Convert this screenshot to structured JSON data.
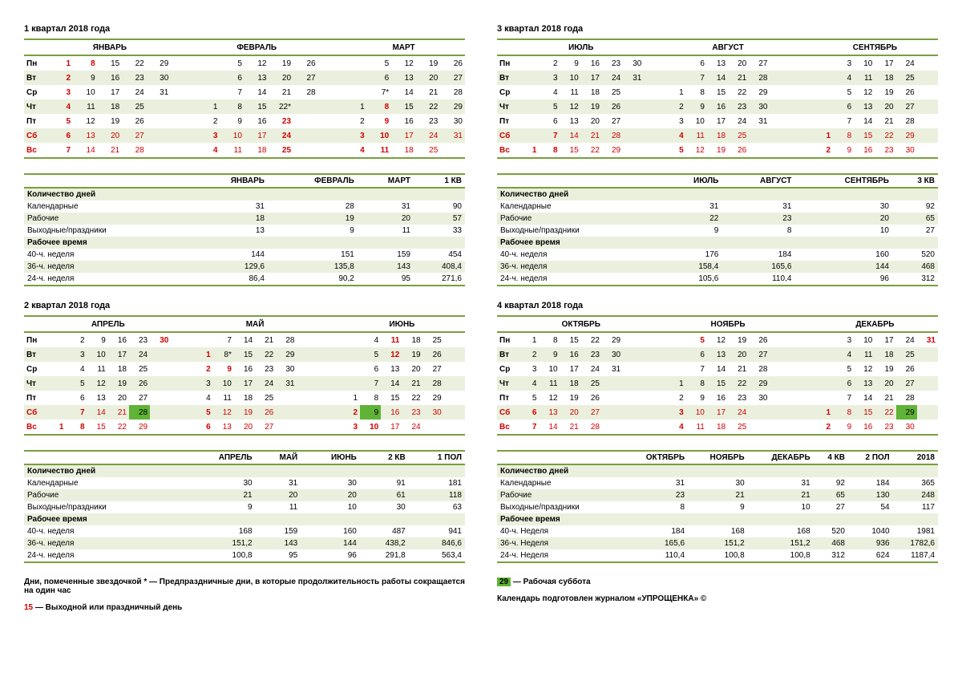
{
  "dows": [
    "Пн",
    "Вт",
    "Ср",
    "Чт",
    "Пт",
    "Сб",
    "Вс"
  ],
  "quarters": [
    {
      "title": "1 квартал 2018 года",
      "months": [
        {
          "name": "ЯНВАРЬ",
          "weeks": 5,
          "grid": [
            [
              "1r",
              "8r",
              "15",
              "22",
              "29"
            ],
            [
              "2r",
              "9",
              "16",
              "23",
              "30"
            ],
            [
              "3r",
              "10",
              "17",
              "24",
              "31"
            ],
            [
              "4r",
              "11",
              "18",
              "25",
              ""
            ],
            [
              "5r",
              "12",
              "19",
              "26",
              ""
            ],
            [
              "6r",
              "13",
              "20",
              "27",
              ""
            ],
            [
              "7r",
              "14",
              "21",
              "28",
              ""
            ]
          ]
        },
        {
          "name": "ФЕВРАЛЬ",
          "weeks": 4,
          "grid": [
            [
              "",
              "5",
              "12",
              "19",
              "26"
            ],
            [
              "",
              "6",
              "13",
              "20",
              "27"
            ],
            [
              "",
              "7",
              "14",
              "21",
              "28"
            ],
            [
              "1",
              "8",
              "15",
              "22*",
              ""
            ],
            [
              "2",
              "9",
              "16",
              "23r",
              ""
            ],
            [
              "3r",
              "10",
              "17",
              "24r",
              ""
            ],
            [
              "4r",
              "11",
              "18",
              "25r",
              ""
            ]
          ]
        },
        {
          "name": "МАРТ",
          "weeks": 4,
          "grid": [
            [
              "",
              "5",
              "12",
              "19",
              "26"
            ],
            [
              "",
              "6",
              "13",
              "20",
              "27"
            ],
            [
              "",
              "7*",
              "14",
              "21",
              "28"
            ],
            [
              "1",
              "8r",
              "15",
              "22",
              "29"
            ],
            [
              "2",
              "9r",
              "16",
              "23",
              "30"
            ],
            [
              "3r",
              "10r",
              "17",
              "24",
              "31"
            ],
            [
              "4r",
              "11r",
              "18",
              "25",
              ""
            ]
          ]
        }
      ],
      "summary": {
        "cols": [
          "ЯНВАРЬ",
          "ФЕВРАЛЬ",
          "МАРТ",
          "1 КВ"
        ],
        "rows": [
          [
            "Количество дней",
            "b",
            "",
            "",
            "",
            ""
          ],
          [
            "Календарные",
            "",
            "31",
            "28",
            "31",
            "90"
          ],
          [
            "Рабочие",
            "",
            "18",
            "19",
            "20",
            "57"
          ],
          [
            "Выходные/праздники",
            "",
            "13",
            "9",
            "11",
            "33"
          ],
          [
            "Рабочее время",
            "b",
            "",
            "",
            "",
            ""
          ],
          [
            "40-ч. неделя",
            "",
            "144",
            "151",
            "159",
            "454"
          ],
          [
            "36-ч. неделя",
            "",
            "129,6",
            "135,8",
            "143",
            "408,4"
          ],
          [
            "24-ч. неделя",
            "",
            "86,4",
            "90,2",
            "95",
            "271,6"
          ]
        ]
      }
    },
    {
      "title": "2 квартал 2018 года",
      "months": [
        {
          "name": "АПРЕЛЬ",
          "weeks": 6,
          "grid": [
            [
              "",
              "2",
              "9",
              "16",
              "23",
              "30r"
            ],
            [
              "",
              "3",
              "10",
              "17",
              "24",
              ""
            ],
            [
              "",
              "4",
              "11",
              "18",
              "25",
              ""
            ],
            [
              "",
              "5",
              "12",
              "19",
              "26",
              ""
            ],
            [
              "",
              "6",
              "13",
              "20",
              "27",
              ""
            ],
            [
              "",
              "7r",
              "14",
              "21",
              "28w",
              ""
            ],
            [
              "1r",
              "8r",
              "15",
              "22",
              "29",
              ""
            ]
          ]
        },
        {
          "name": "МАЙ",
          "weeks": 5,
          "grid": [
            [
              "",
              "7",
              "14",
              "21",
              "28"
            ],
            [
              "1r",
              "8*",
              "15",
              "22",
              "29"
            ],
            [
              "2r",
              "9r",
              "16",
              "23",
              "30"
            ],
            [
              "3",
              "10",
              "17",
              "24",
              "31"
            ],
            [
              "4",
              "11",
              "18",
              "25",
              ""
            ],
            [
              "5r",
              "12",
              "19",
              "26",
              ""
            ],
            [
              "6r",
              "13",
              "20",
              "27",
              ""
            ]
          ]
        },
        {
          "name": "ИЮНЬ",
          "weeks": 4,
          "grid": [
            [
              "",
              "4",
              "11r",
              "18",
              "25"
            ],
            [
              "",
              "5",
              "12r",
              "19",
              "26"
            ],
            [
              "",
              "6",
              "13",
              "20",
              "27"
            ],
            [
              "",
              "7",
              "14",
              "21",
              "28"
            ],
            [
              "1",
              "8",
              "15",
              "22",
              "29"
            ],
            [
              "2r",
              "9w",
              "16",
              "23",
              "30"
            ],
            [
              "3r",
              "10r",
              "17",
              "24",
              ""
            ]
          ]
        }
      ],
      "summary": {
        "cols": [
          "АПРЕЛЬ",
          "МАЙ",
          "ИЮНЬ",
          "2 КВ",
          "1 ПОЛ"
        ],
        "rows": [
          [
            "Количество дней",
            "b",
            "",
            "",
            "",
            "",
            ""
          ],
          [
            "Календарные",
            "",
            "30",
            "31",
            "30",
            "91",
            "181"
          ],
          [
            "Рабочие",
            "",
            "21",
            "20",
            "20",
            "61",
            "118"
          ],
          [
            "Выходные/праздники",
            "",
            "9",
            "11",
            "10",
            "30",
            "63"
          ],
          [
            "Рабочее время",
            "b",
            "",
            "",
            "",
            "",
            ""
          ],
          [
            "40-ч. неделя",
            "",
            "168",
            "159",
            "160",
            "487",
            "941"
          ],
          [
            "36-ч. неделя",
            "",
            "151,2",
            "143",
            "144",
            "438,2",
            "846,6"
          ],
          [
            "24-ч. неделя",
            "",
            "100,8",
            "95",
            "96",
            "291,8",
            "563,4"
          ]
        ]
      }
    },
    {
      "title": "3 квартал 2018 года",
      "months": [
        {
          "name": "ИЮЛЬ",
          "weeks": 6,
          "grid": [
            [
              "",
              "2",
              "9",
              "16",
              "23",
              "30"
            ],
            [
              "",
              "3",
              "10",
              "17",
              "24",
              "31"
            ],
            [
              "",
              "4",
              "11",
              "18",
              "25",
              ""
            ],
            [
              "",
              "5",
              "12",
              "19",
              "26",
              ""
            ],
            [
              "",
              "6",
              "13",
              "20",
              "27",
              ""
            ],
            [
              "",
              "7r",
              "14",
              "21",
              "28",
              ""
            ],
            [
              "1r",
              "8r",
              "15",
              "22",
              "29",
              ""
            ]
          ]
        },
        {
          "name": "АВГУСТ",
          "weeks": 5,
          "grid": [
            [
              "",
              "6",
              "13",
              "20",
              "27"
            ],
            [
              "",
              "7",
              "14",
              "21",
              "28"
            ],
            [
              "1",
              "8",
              "15",
              "22",
              "29"
            ],
            [
              "2",
              "9",
              "16",
              "23",
              "30"
            ],
            [
              "3",
              "10",
              "17",
              "24",
              "31"
            ],
            [
              "4r",
              "11",
              "18",
              "25",
              ""
            ],
            [
              "5r",
              "12",
              "19",
              "26",
              ""
            ]
          ]
        },
        {
          "name": "СЕНТЯБРЬ",
          "weeks": 5,
          "grid": [
            [
              "",
              "3",
              "10",
              "17",
              "24"
            ],
            [
              "",
              "4",
              "11",
              "18",
              "25"
            ],
            [
              "",
              "5",
              "12",
              "19",
              "26"
            ],
            [
              "",
              "6",
              "13",
              "20",
              "27"
            ],
            [
              "",
              "7",
              "14",
              "21",
              "28"
            ],
            [
              "1r",
              "8",
              "15",
              "22",
              "29"
            ],
            [
              "2r",
              "9",
              "16",
              "23",
              "30"
            ]
          ]
        }
      ],
      "summary": {
        "cols": [
          "ИЮЛЬ",
          "АВГУСТ",
          "СЕНТЯБРЬ",
          "3 КВ"
        ],
        "rows": [
          [
            "Количество дней",
            "b",
            "",
            "",
            "",
            ""
          ],
          [
            "Календарные",
            "",
            "31",
            "31",
            "30",
            "92"
          ],
          [
            "Рабочие",
            "",
            "22",
            "23",
            "20",
            "65"
          ],
          [
            "Выходные/праздники",
            "",
            "9",
            "8",
            "10",
            "27"
          ],
          [
            "Рабочее время",
            "b",
            "",
            "",
            "",
            ""
          ],
          [
            "40-ч. неделя",
            "",
            "176",
            "184",
            "160",
            "520"
          ],
          [
            "36-ч. неделя",
            "",
            "158,4",
            "165,6",
            "144",
            "468"
          ],
          [
            "24-ч. неделя",
            "",
            "105,6",
            "110,4",
            "96",
            "312"
          ]
        ]
      }
    },
    {
      "title": "4 квартал 2018 года",
      "months": [
        {
          "name": "ОКТЯБРЬ",
          "weeks": 5,
          "grid": [
            [
              "1",
              "8",
              "15",
              "22",
              "29"
            ],
            [
              "2",
              "9",
              "16",
              "23",
              "30"
            ],
            [
              "3",
              "10",
              "17",
              "24",
              "31"
            ],
            [
              "4",
              "11",
              "18",
              "25",
              ""
            ],
            [
              "5",
              "12",
              "19",
              "26",
              ""
            ],
            [
              "6r",
              "13",
              "20",
              "27",
              ""
            ],
            [
              "7r",
              "14",
              "21",
              "28",
              ""
            ]
          ]
        },
        {
          "name": "НОЯБРЬ",
          "weeks": 5,
          "grid": [
            [
              "",
              "5r",
              "12",
              "19",
              "26"
            ],
            [
              "",
              "6",
              "13",
              "20",
              "27"
            ],
            [
              "",
              "7",
              "14",
              "21",
              "28"
            ],
            [
              "1",
              "8",
              "15",
              "22",
              "29"
            ],
            [
              "2",
              "9",
              "16",
              "23",
              "30"
            ],
            [
              "3r",
              "10",
              "17",
              "24",
              ""
            ],
            [
              "4r",
              "11",
              "18",
              "25",
              ""
            ]
          ]
        },
        {
          "name": "ДЕКАБРЬ",
          "weeks": 6,
          "grid": [
            [
              "",
              "3",
              "10",
              "17",
              "24",
              "31r"
            ],
            [
              "",
              "4",
              "11",
              "18",
              "25",
              ""
            ],
            [
              "",
              "5",
              "12",
              "19",
              "26",
              ""
            ],
            [
              "",
              "6",
              "13",
              "20",
              "27",
              ""
            ],
            [
              "",
              "7",
              "14",
              "21",
              "28",
              ""
            ],
            [
              "1r",
              "8",
              "15",
              "22",
              "29w",
              ""
            ],
            [
              "2r",
              "9",
              "16",
              "23",
              "30",
              ""
            ]
          ]
        }
      ],
      "summary": {
        "cols": [
          "ОКТЯБРЬ",
          "НОЯБРЬ",
          "ДЕКАБРЬ",
          "4 КВ",
          "2 ПОЛ",
          "2018"
        ],
        "rows": [
          [
            "Количество дней",
            "b",
            "",
            "",
            "",
            "",
            "",
            ""
          ],
          [
            "Календарные",
            "",
            "31",
            "30",
            "31",
            "92",
            "184",
            "365"
          ],
          [
            "Рабочие",
            "",
            "23",
            "21",
            "21",
            "65",
            "130",
            "248"
          ],
          [
            "Выходные/праздники",
            "",
            "8",
            "9",
            "10",
            "27",
            "54",
            "117"
          ],
          [
            "Рабочее время",
            "b",
            "",
            "",
            "",
            "",
            "",
            ""
          ],
          [
            "40-ч. Неделя",
            "",
            "184",
            "168",
            "168",
            "520",
            "1040",
            "1981"
          ],
          [
            "36-ч. Неделя",
            "",
            "165,6",
            "151,2",
            "151,2",
            "468",
            "936",
            "1782,6"
          ],
          [
            "24-ч. Неделя",
            "",
            "110,4",
            "100,8",
            "100,8",
            "312",
            "624",
            "1187,4"
          ]
        ]
      }
    }
  ],
  "legend": {
    "star": "Дни, помеченные звездочкой * — Предпраздничные дни, в которые продолжительность работы сокращается на один час",
    "holiday_num": "15",
    "holiday_txt": " — Выходной или праздничный день",
    "ws_num": "29",
    "ws_txt": " — Рабочая суббота",
    "credit": "Календарь подготовлен журналом «УПРОЩЕНКА» ©"
  }
}
